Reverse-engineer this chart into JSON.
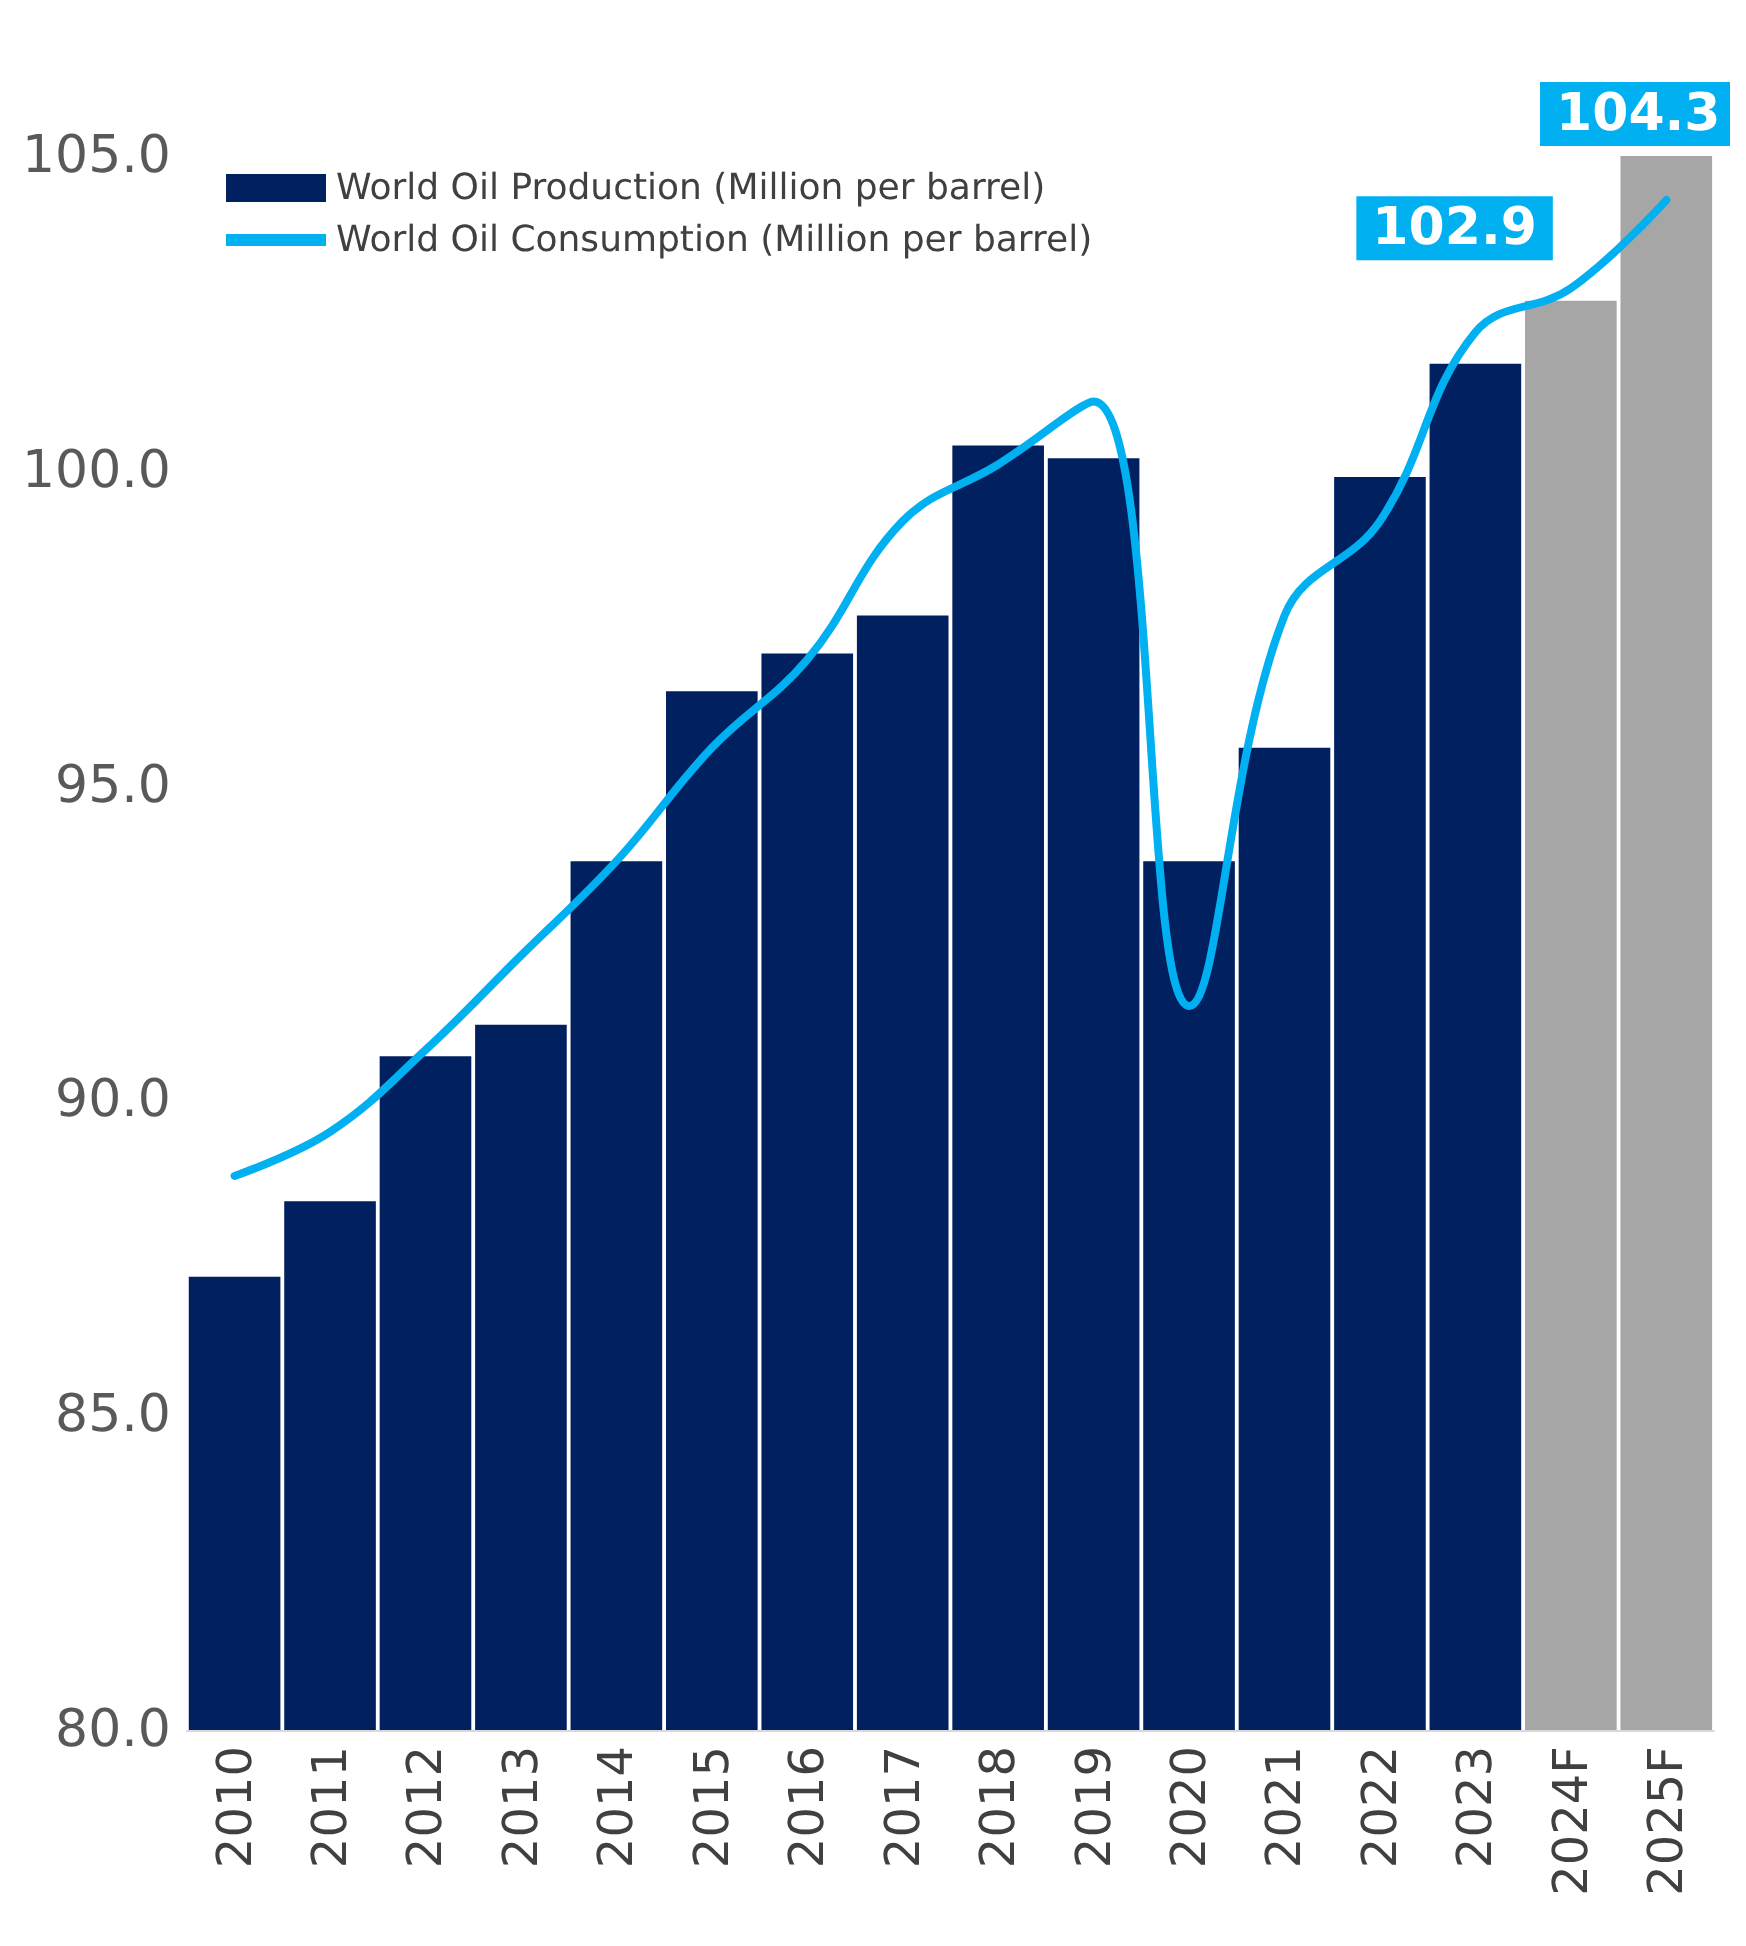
{
  "chart_data": {
    "type": "bar",
    "categories": [
      "2010",
      "2011",
      "2012",
      "2013",
      "2014",
      "2015",
      "2016",
      "2017",
      "2018",
      "2019",
      "2020",
      "2021",
      "2022",
      "2023",
      "2024F",
      "2025F"
    ],
    "series": [
      {
        "name": "World Oil Production (Million per barrel)",
        "color": "#002060",
        "colors": [
          "#002060",
          "#002060",
          "#002060",
          "#002060",
          "#002060",
          "#002060",
          "#002060",
          "#002060",
          "#002060",
          "#002060",
          "#002060",
          "#002060",
          "#002060",
          "#002060",
          "#a6a6a6",
          "#a6a6a6"
        ],
        "values": [
          87.2,
          88.4,
          90.7,
          91.2,
          93.8,
          96.5,
          97.1,
          97.7,
          100.4,
          100.2,
          93.8,
          95.6,
          99.9,
          101.7,
          102.7,
          105.0
        ]
      },
      {
        "type": "line",
        "name": "World Oil Consumption (Million per barrel)",
        "color": "#00b0f0",
        "values": [
          88.8,
          89.5,
          90.8,
          92.3,
          93.8,
          95.6,
          97.0,
          99.2,
          100.1,
          101.1,
          91.5,
          97.7,
          99.2,
          102.2,
          102.9,
          104.3
        ],
        "value_labels": [
          null,
          null,
          null,
          null,
          null,
          null,
          null,
          null,
          null,
          null,
          null,
          null,
          null,
          null,
          "102.9",
          "104.3"
        ]
      }
    ],
    "ylim": [
      80,
      105
    ],
    "yticks": [
      {
        "value": 80,
        "label": "80.0"
      },
      {
        "value": 85,
        "label": "85.0"
      },
      {
        "value": 90,
        "label": "90.0"
      },
      {
        "value": 95,
        "label": "95.0"
      },
      {
        "value": 100,
        "label": "100.0"
      },
      {
        "value": 105,
        "label": "105.0"
      }
    ],
    "legend": "top left",
    "grid": false,
    "marker": "none",
    "line_style": "solid"
  }
}
